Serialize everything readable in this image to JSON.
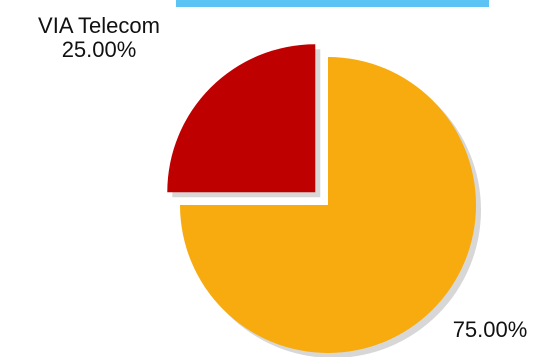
{
  "chart_data": {
    "type": "pie",
    "title": "",
    "slices": [
      {
        "name": "VIA Telecom",
        "value": 25.0,
        "value_label": "25.00%",
        "color": "#bf0000",
        "exploded": true
      },
      {
        "name": "",
        "value": 75.0,
        "value_label": "75.00%",
        "color": "#f7ab0f",
        "exploded": false
      }
    ],
    "shadow_color": "#d7d7d7",
    "header_bar_color": "#5cc4f5"
  }
}
